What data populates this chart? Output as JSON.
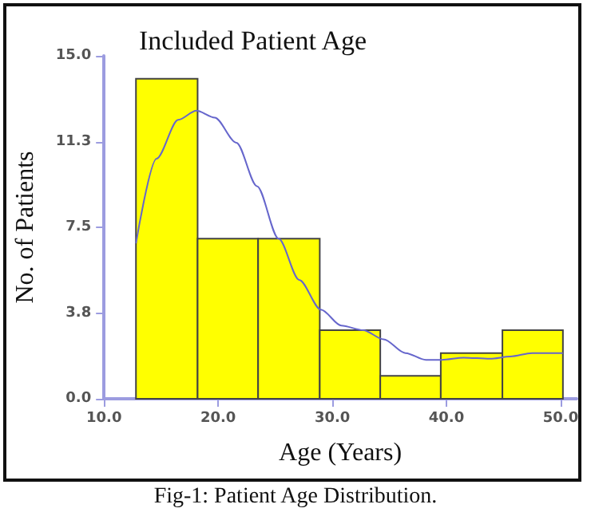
{
  "chart_data": {
    "type": "histogram",
    "title": "Included Patient Age",
    "xlabel": "Age (Years)",
    "ylabel": "No. of Patients",
    "annotations": [
      "Fig-1: Patient Age Distribution."
    ],
    "bins": [
      12.8,
      18.2,
      23.5,
      28.9,
      34.2,
      39.5,
      44.9,
      50.2
    ],
    "values": [
      14,
      7,
      7,
      3,
      1,
      2,
      3
    ],
    "color": "#ffff00",
    "series": [
      {
        "type": "line",
        "color": "#6666cc",
        "marker": "none",
        "x": [
          12.8,
          14.6,
          16.5,
          18.1,
          19.7,
          21.6,
          23.4,
          25.3,
          27.1,
          29.0,
          30.8,
          32.7,
          34.5,
          36.4,
          38.2,
          39.6,
          41.5,
          43.8,
          45.6,
          47.5,
          50.2
        ],
        "values": [
          6.8,
          10.5,
          12.2,
          12.6,
          12.3,
          11.2,
          9.3,
          7.0,
          5.2,
          3.9,
          3.2,
          3.0,
          2.6,
          2.0,
          1.7,
          1.7,
          1.8,
          1.75,
          1.85,
          2.0,
          2.0
        ]
      }
    ],
    "xlim": [
      10,
      51.4
    ],
    "xticks": [
      {
        "value": 10,
        "label": "10.0"
      },
      {
        "value": 20,
        "label": "20.0"
      },
      {
        "value": 30,
        "label": "30.0"
      },
      {
        "value": 40,
        "label": "40.0"
      },
      {
        "value": 50,
        "label": "50.0"
      }
    ],
    "ylim": [
      0,
      15
    ],
    "yticks": [
      {
        "value": 0,
        "label": "0.0"
      },
      {
        "value": 3.75,
        "label": "3.8"
      },
      {
        "value": 7.5,
        "label": "7.5"
      },
      {
        "value": 11.25,
        "label": "11.3"
      },
      {
        "value": 15,
        "label": "15.0"
      }
    ],
    "grid": false
  }
}
